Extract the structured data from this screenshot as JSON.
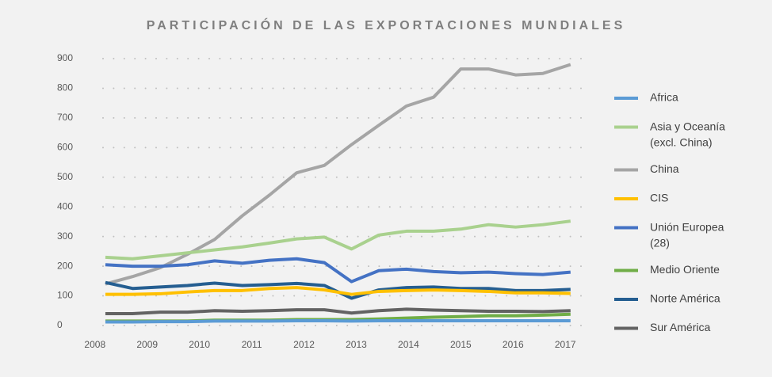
{
  "chart_data": {
    "type": "line",
    "title": "PARTICIPACIÓN DE LAS  EXPORTACIONES MUNDIALES",
    "x": [
      2008.2,
      2008.72,
      2009.25,
      2009.77,
      2010.29,
      2010.82,
      2011.34,
      2011.86,
      2012.39,
      2012.91,
      2013.43,
      2013.96,
      2014.48,
      2015.0,
      2015.53,
      2016.05,
      2016.57,
      2017.1
    ],
    "xlim": [
      2007.7,
      2017.3
    ],
    "xticks": [
      2008,
      2009,
      2010,
      2011,
      2012,
      2013,
      2014,
      2015,
      2016,
      2017
    ],
    "ylim": [
      0,
      900
    ],
    "yticks": [
      0,
      100,
      200,
      300,
      400,
      500,
      600,
      700,
      800,
      900
    ],
    "grid": true,
    "legend": "right",
    "series": [
      {
        "name": "Africa",
        "color": "#5b9bd5",
        "values": [
          12,
          12,
          13,
          13,
          15,
          15,
          15,
          16,
          16,
          15,
          16,
          16,
          16,
          16,
          16,
          16,
          16,
          16
        ]
      },
      {
        "name": "Asia y Oceanía (excl. China)",
        "color": "#a9d18e",
        "values": [
          230,
          225,
          235,
          245,
          255,
          265,
          278,
          292,
          298,
          258,
          305,
          318,
          318,
          325,
          340,
          332,
          340,
          352
        ]
      },
      {
        "name": "China",
        "color": "#a5a5a5",
        "values": [
          140,
          165,
          195,
          240,
          290,
          370,
          440,
          515,
          540,
          610,
          675,
          740,
          770,
          865,
          865,
          845,
          850,
          880
        ]
      },
      {
        "name": "CIS",
        "color": "#ffc000",
        "values": [
          105,
          105,
          107,
          113,
          118,
          118,
          125,
          128,
          120,
          105,
          115,
          118,
          120,
          118,
          115,
          110,
          110,
          108
        ]
      },
      {
        "name": "Unión Europea (28)",
        "color": "#4472c4",
        "values": [
          205,
          200,
          200,
          205,
          218,
          210,
          220,
          225,
          212,
          148,
          185,
          190,
          182,
          178,
          180,
          175,
          172,
          180
        ]
      },
      {
        "name": "Medio Oriente",
        "color": "#70ad47",
        "values": [
          15,
          15,
          15,
          15,
          18,
          18,
          18,
          20,
          20,
          20,
          22,
          25,
          28,
          30,
          33,
          33,
          35,
          38
        ]
      },
      {
        "name": "Norte América",
        "color": "#255e91",
        "values": [
          145,
          125,
          130,
          135,
          143,
          135,
          138,
          142,
          135,
          92,
          120,
          128,
          130,
          125,
          125,
          118,
          118,
          122
        ]
      },
      {
        "name": "Sur América",
        "color": "#636363",
        "values": [
          40,
          40,
          45,
          45,
          50,
          48,
          50,
          53,
          53,
          42,
          50,
          55,
          52,
          50,
          48,
          48,
          47,
          50
        ]
      }
    ]
  }
}
